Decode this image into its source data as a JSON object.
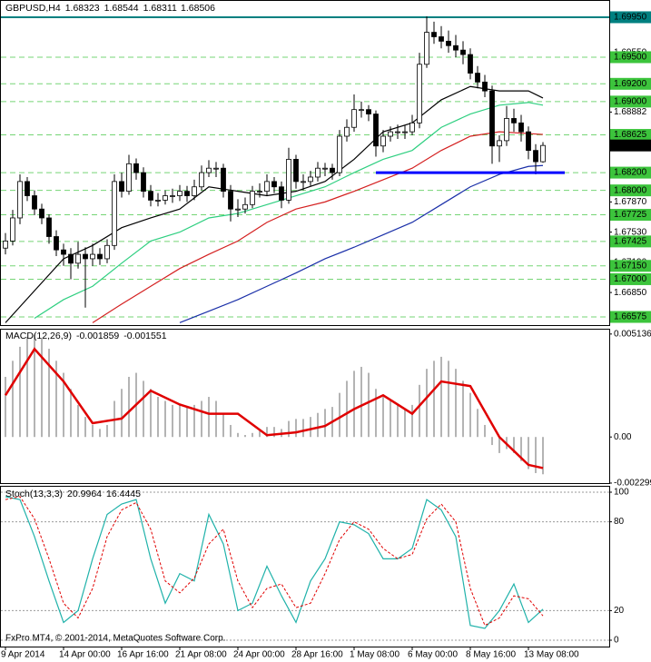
{
  "footer": "FxPro MT4, © 2001-2014, MetaQuotes Software Corp.",
  "chart_data": [
    {
      "type": "candlestick",
      "title": "GBPUSD,H4",
      "categories": [
        "9 Apr 2014",
        null,
        null,
        null,
        null,
        null,
        null,
        null,
        "14 Apr 00:00",
        null,
        null,
        null,
        null,
        null,
        null,
        null,
        "16 Apr 16:00",
        null,
        null,
        null,
        null,
        null,
        null,
        null,
        "21 Apr 08:00",
        null,
        null,
        null,
        null,
        null,
        null,
        null,
        "24 Apr 00:00",
        null,
        null,
        null,
        null,
        null,
        null,
        null,
        "28 Apr 16:00",
        null,
        null,
        null,
        null,
        null,
        null,
        null,
        "1 May 08:00",
        null,
        null,
        null,
        null,
        null,
        null,
        null,
        "6 May 00:00",
        null,
        null,
        null,
        null,
        null,
        null,
        null,
        "8 May 16:00",
        null,
        null,
        null,
        null,
        null,
        null,
        null,
        "13 May 08:00",
        null,
        null
      ],
      "open": [
        1.6735,
        1.6743,
        1.6769,
        1.681,
        1.6794,
        1.6779,
        1.6769,
        1.6748,
        1.6733,
        1.6728,
        1.6718,
        1.6728,
        1.6723,
        1.6728,
        1.6723,
        1.6738,
        1.681,
        1.6799,
        1.683,
        1.682,
        1.6799,
        1.6789,
        1.6789,
        1.6794,
        1.6794,
        1.6799,
        1.6794,
        1.6804,
        1.682,
        1.6825,
        1.6825,
        1.6799,
        1.6779,
        1.6779,
        1.6784,
        1.6799,
        1.6799,
        1.681,
        1.6804,
        1.6789,
        1.6835,
        1.681,
        1.681,
        1.6815,
        1.6825,
        1.6825,
        1.682,
        1.6861,
        1.6871,
        1.6891,
        1.6891,
        1.6886,
        1.685,
        1.6861,
        1.6866,
        1.6866,
        1.6866,
        1.6876,
        1.6942,
        1.6978,
        1.6973,
        1.6968,
        1.6963,
        1.6958,
        1.6953,
        1.6932,
        1.6922,
        1.6912,
        1.685,
        1.6856,
        1.6881,
        1.6876,
        1.6866,
        1.6845,
        1.68323
      ],
      "high": [
        1.6752,
        1.6778,
        1.6818,
        1.6815,
        1.68,
        1.6785,
        1.6773,
        1.6755,
        1.674,
        1.6735,
        1.6742,
        1.6736,
        1.674,
        1.6735,
        1.6745,
        1.6818,
        1.682,
        1.684,
        1.6836,
        1.6826,
        1.6806,
        1.6797,
        1.68,
        1.6802,
        1.6806,
        1.6805,
        1.6812,
        1.6828,
        1.6834,
        1.6832,
        1.683,
        1.6806,
        1.679,
        1.6792,
        1.6805,
        1.6808,
        1.6818,
        1.6815,
        1.681,
        1.6848,
        1.684,
        1.6818,
        1.6822,
        1.6832,
        1.6831,
        1.683,
        1.6868,
        1.688,
        1.6908,
        1.69,
        1.6896,
        1.689,
        1.6868,
        1.6872,
        1.6874,
        1.6873,
        1.6885,
        1.6955,
        1.6996,
        1.699,
        1.6985,
        1.698,
        1.6975,
        1.6968,
        1.696,
        1.694,
        1.693,
        1.6918,
        1.6862,
        1.6895,
        1.6892,
        1.6885,
        1.6872,
        1.6852,
        1.68544
      ],
      "low": [
        1.6728,
        1.6738,
        1.6762,
        1.6788,
        1.6772,
        1.6762,
        1.674,
        1.6726,
        1.6715,
        1.67,
        1.6712,
        1.6668,
        1.6715,
        1.6716,
        1.6718,
        1.6733,
        1.6792,
        1.6795,
        1.6812,
        1.6792,
        1.6782,
        1.6782,
        1.6784,
        1.6786,
        1.6788,
        1.6787,
        1.6789,
        1.68,
        1.6815,
        1.6815,
        1.6792,
        1.6765,
        1.677,
        1.6774,
        1.678,
        1.6792,
        1.6794,
        1.6797,
        1.678,
        1.6785,
        1.6802,
        1.68,
        1.6805,
        1.681,
        1.6816,
        1.6812,
        1.6816,
        1.6855,
        1.6866,
        1.6882,
        1.6878,
        1.6838,
        1.6843,
        1.6855,
        1.6858,
        1.6858,
        1.6862,
        1.687,
        1.6938,
        1.6965,
        1.696,
        1.6955,
        1.695,
        1.6942,
        1.6925,
        1.6915,
        1.6905,
        1.683,
        1.6832,
        1.685,
        1.6866,
        1.6855,
        1.6835,
        1.6818,
        1.68311
      ],
      "close": [
        1.6743,
        1.6769,
        1.681,
        1.6794,
        1.6779,
        1.6769,
        1.6748,
        1.6733,
        1.6728,
        1.6718,
        1.6728,
        1.6723,
        1.6728,
        1.6723,
        1.6738,
        1.681,
        1.6799,
        1.683,
        1.682,
        1.6799,
        1.6789,
        1.6789,
        1.6794,
        1.6794,
        1.6799,
        1.6794,
        1.6804,
        1.682,
        1.6825,
        1.6825,
        1.6799,
        1.6779,
        1.6779,
        1.6784,
        1.6799,
        1.6799,
        1.681,
        1.6804,
        1.6789,
        1.6835,
        1.681,
        1.681,
        1.6815,
        1.6825,
        1.6825,
        1.682,
        1.6861,
        1.6871,
        1.6891,
        1.6891,
        1.6886,
        1.685,
        1.6861,
        1.6866,
        1.6866,
        1.6866,
        1.6876,
        1.6942,
        1.6978,
        1.6973,
        1.6968,
        1.6963,
        1.6958,
        1.6953,
        1.6932,
        1.6922,
        1.6912,
        1.685,
        1.6856,
        1.6881,
        1.6876,
        1.6866,
        1.6845,
        1.68323,
        1.68506
      ],
      "up_color": "#ffffff",
      "down_color": "#000000",
      "wick_color": "#000000",
      "ma_x": [
        0,
        4,
        8,
        12,
        16,
        20,
        24,
        28,
        32,
        36,
        40,
        44,
        48,
        52,
        56,
        60,
        64,
        68,
        72,
        74
      ],
      "ma": [
        {
          "color": "#000000",
          "values": [
            1.6651,
            1.6687,
            1.6723,
            1.6738,
            1.6758,
            1.6769,
            1.6779,
            1.6804,
            1.6799,
            1.6794,
            1.6799,
            1.681,
            1.6835,
            1.6866,
            1.6876,
            1.6902,
            1.6917,
            1.6912,
            1.6912,
            1.6904
          ]
        },
        {
          "color": "#2ecf80",
          "values": [
            null,
            1.6656,
            1.6677,
            1.6692,
            1.6718,
            1.6743,
            1.6753,
            1.6769,
            1.6774,
            1.6784,
            1.6794,
            1.6804,
            1.682,
            1.6835,
            1.6845,
            1.6871,
            1.6886,
            1.6896,
            1.6899,
            1.6896
          ]
        },
        {
          "color": "#d42020",
          "values": [
            null,
            null,
            null,
            1.6651,
            1.6672,
            1.6692,
            1.6712,
            1.6728,
            1.6743,
            1.6764,
            1.6779,
            1.6787,
            1.6799,
            1.6812,
            1.6825,
            1.6845,
            1.6861,
            1.6866,
            1.6864,
            1.6863
          ]
        },
        {
          "color": "#1a2fa8",
          "values": [
            null,
            null,
            null,
            null,
            null,
            null,
            1.6651,
            1.6664,
            1.6677,
            1.6692,
            1.6707,
            1.6723,
            1.6736,
            1.675,
            1.6764,
            1.6784,
            1.6804,
            1.6818,
            1.6827,
            1.6828
          ]
        }
      ],
      "support_line": {
        "value": 1.682,
        "x": [
          51,
          77
        ],
        "color": "#0000ff"
      },
      "ylim": [
        1.66483,
        1.70144
      ],
      "yticks": [
        {
          "value": 1.6955,
          "label": "1.69550"
        },
        1.68882,
        {
          "value": 1.6787,
          "label": "1.67870"
        },
        {
          "value": 1.6753,
          "label": "1.67530"
        },
        {
          "value": 1.6719,
          "label": "1.67190"
        },
        {
          "value": 1.6685,
          "label": "1.66850"
        }
      ],
      "levels": [
        {
          "value": 1.6995,
          "label": "1.69950",
          "color": "#008080"
        },
        {
          "value": 1.695,
          "label": "1.69500",
          "color": "#3cc43c"
        },
        {
          "value": 1.692,
          "label": "1.69200",
          "color": "#3cc43c"
        },
        {
          "value": 1.69,
          "label": "1.69000",
          "color": "#3cc43c"
        },
        {
          "value": 1.68625,
          "color": "#3cc43c"
        },
        {
          "value": 1.682,
          "label": "1.68200",
          "color": "#3cc43c"
        },
        {
          "value": 1.68,
          "label": "1.68000",
          "color": "#3cc43c"
        },
        {
          "value": 1.67725,
          "color": "#3cc43c"
        },
        {
          "value": 1.67425,
          "color": "#3cc43c"
        },
        {
          "value": 1.6715,
          "label": "1.67150",
          "color": "#3cc43c"
        },
        {
          "value": 1.67,
          "label": "1.67000",
          "color": "#3cc43c"
        },
        {
          "value": 1.66575,
          "color": "#3cc43c"
        }
      ],
      "current_color": "#000000"
    },
    {
      "type": "macd",
      "title": "MACD(12,26,9)",
      "histogram": {
        "color": "#b4b4b4",
        "values": [
          0.003,
          0.0038,
          0.0045,
          0.005,
          0.0051,
          0.0049,
          0.0044,
          0.0038,
          0.0032,
          0.0024,
          0.0016,
          0.001,
          0.0006,
          0.0004,
          0.0006,
          0.0018,
          0.0024,
          0.003,
          0.0032,
          0.0028,
          0.0024,
          0.002,
          0.0018,
          0.0016,
          0.0016,
          0.0015,
          0.0016,
          0.0018,
          0.002,
          0.0018,
          0.0012,
          0.0006,
          0.0002,
          0.0001,
          0.0002,
          0.0003,
          0.0005,
          0.0005,
          0.0004,
          0.0008,
          0.0009,
          0.0009,
          0.001,
          0.0012,
          0.0014,
          0.0015,
          0.0022,
          0.0028,
          0.0033,
          0.0035,
          0.0032,
          0.0024,
          0.002,
          0.0018,
          0.0016,
          0.0014,
          0.0016,
          0.0026,
          0.0034,
          0.0038,
          0.004,
          0.0038,
          0.0034,
          0.0028,
          0.0022,
          0.0014,
          0.0006,
          -0.0004,
          -0.0008,
          -0.0006,
          -0.0008,
          -0.0012,
          -0.0016,
          -0.0018,
          -0.001859
        ]
      },
      "signal": {
        "color": "#e00000",
        "x": [
          0,
          4,
          8,
          12,
          16,
          20,
          24,
          28,
          32,
          36,
          40,
          44,
          48,
          52,
          56,
          60,
          64,
          68,
          72,
          74
        ],
        "values": [
          0.00208,
          0.00439,
          0.00277,
          0.00069,
          0.00092,
          0.00231,
          0.00162,
          0.00116,
          0.00116,
          9e-05,
          0.00023,
          0.00055,
          0.00139,
          0.00208,
          0.00116,
          0.00277,
          0.00254,
          0.0,
          -0.00139,
          -0.001551
        ]
      },
      "ylim": [
        -0.0023,
        0.0054
      ],
      "yticks": [
        0.005136,
        {
          "value": 0,
          "label": "0.00"
        },
        -0.002299
      ]
    },
    {
      "type": "stochastic",
      "title": "Stoch(13,3,3)",
      "x": [
        0,
        2,
        4,
        6,
        8,
        10,
        12,
        14,
        16,
        18,
        20,
        22,
        24,
        26,
        28,
        30,
        32,
        34,
        36,
        38,
        40,
        42,
        44,
        46,
        48,
        50,
        52,
        54,
        56,
        58,
        60,
        62,
        64,
        66,
        68,
        70,
        72,
        74
      ],
      "main": {
        "color": "#20b2aa",
        "values": [
          97,
          95,
          70,
          40,
          12,
          20,
          55,
          85,
          92,
          95,
          55,
          25,
          45,
          40,
          85,
          65,
          20,
          25,
          50,
          30,
          12,
          40,
          55,
          80,
          78,
          72,
          55,
          55,
          62,
          95,
          88,
          70,
          10,
          8,
          20,
          38,
          12,
          20.9964
        ]
      },
      "signal": {
        "color": "#e00000",
        "values": [
          95,
          97,
          82,
          55,
          25,
          15,
          35,
          70,
          88,
          93,
          75,
          40,
          32,
          42,
          65,
          75,
          40,
          22,
          35,
          38,
          22,
          25,
          45,
          68,
          80,
          75,
          62,
          55,
          58,
          82,
          92,
          80,
          35,
          10,
          15,
          30,
          28,
          16.4445
        ]
      },
      "ylim": [
        -4.3,
        104.3
      ],
      "yticks": [
        100,
        80,
        20,
        0
      ],
      "grid": true
    }
  ]
}
